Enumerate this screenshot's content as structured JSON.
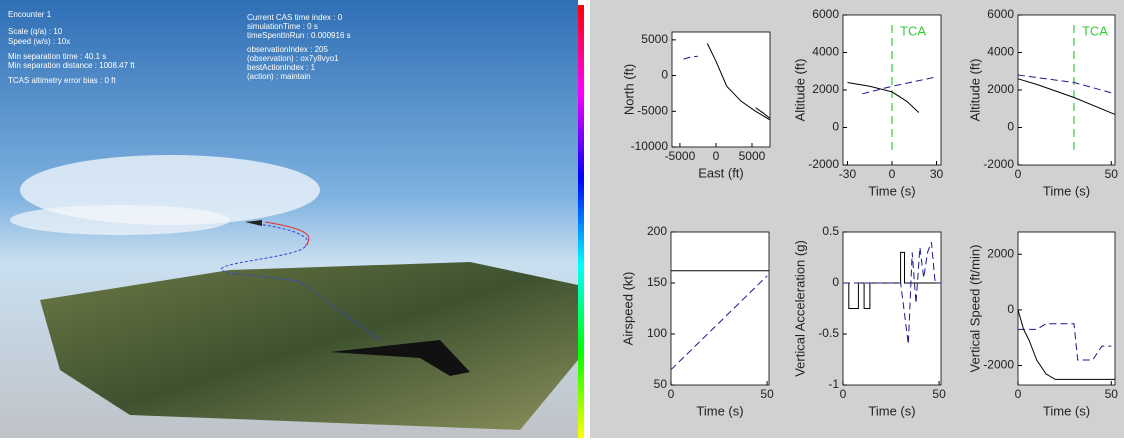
{
  "overlay": {
    "left": [
      "Encounter 1",
      "Scale (q/a) : 10",
      "Speed (w/s) : 10x",
      "Min separation time : 40.1 s",
      "Min separation distance : 1008.47 ft",
      "TCAS altimetry error bias : 0 ft"
    ],
    "right": [
      "Current CAS time index : 0",
      "simulationTime : 0 s",
      "timeSpentInRun : 0.000916 s",
      "observationIndex : 205",
      "(observation) : ox7y8vyo1",
      "bestActionIndex : 1",
      "(action) : maintain"
    ]
  },
  "chart_data": [
    {
      "type": "line",
      "xlabel": "East (ft)",
      "ylabel": "North (ft)",
      "xlim": [
        -6100,
        7500
      ],
      "ylim": [
        -10000,
        6100
      ],
      "xticks": [
        -5000,
        0,
        5000
      ],
      "yticks": [
        -10000,
        -5000,
        0,
        5000
      ],
      "series": [
        {
          "color": "#000000",
          "dash": false,
          "x": [
            -1200,
            0,
            1500,
            3500,
            5500,
            7500
          ],
          "values": [
            4500,
            2000,
            -1500,
            -3600,
            -5000,
            -6200
          ]
        },
        {
          "color": "#1a1a8c",
          "dash": true,
          "x": [
            -4500,
            -3500,
            -2500
          ],
          "values": [
            2300,
            2600,
            2700
          ]
        },
        {
          "color": "#000000",
          "dash": false,
          "x": [
            5500,
            6500,
            7500
          ],
          "values": [
            -4500,
            -5200,
            -6000
          ]
        }
      ]
    },
    {
      "type": "line",
      "xlabel": "Time (s)",
      "ylabel": "Altitude (ft)",
      "xlim": [
        -33,
        33
      ],
      "ylim": [
        -2000,
        6000
      ],
      "xticks": [
        -30,
        0,
        30
      ],
      "yticks": [
        -2000,
        0,
        2000,
        4000,
        6000
      ],
      "vline": {
        "x": 0,
        "label": "TCA",
        "color": "#33cc33"
      },
      "series": [
        {
          "color": "#000000",
          "dash": false,
          "x": [
            -30,
            -15,
            0,
            10,
            18
          ],
          "values": [
            2400,
            2200,
            1900,
            1400,
            800
          ]
        },
        {
          "color": "#1a1a8c",
          "dash": true,
          "x": [
            -20,
            0,
            30
          ],
          "values": [
            1800,
            2200,
            2700
          ]
        }
      ]
    },
    {
      "type": "line",
      "xlabel": "Time (s)",
      "ylabel": "Altitude (ft)",
      "xlim": [
        0,
        52
      ],
      "ylim": [
        -2000,
        6000
      ],
      "xticks": [
        0,
        50
      ],
      "yticks": [
        -2000,
        0,
        2000,
        4000,
        6000
      ],
      "vline": {
        "x": 30,
        "label": "TCA",
        "color": "#33cc33"
      },
      "series": [
        {
          "color": "#000000",
          "dash": false,
          "x": [
            0,
            10,
            30,
            52
          ],
          "values": [
            2600,
            2300,
            1600,
            700
          ]
        },
        {
          "color": "#1a1a8c",
          "dash": true,
          "x": [
            0,
            15,
            30,
            52
          ],
          "values": [
            2800,
            2600,
            2400,
            1800
          ]
        }
      ]
    },
    {
      "type": "line",
      "xlabel": "Time (s)",
      "ylabel": "Airspeed (kt)",
      "xlim": [
        0,
        51
      ],
      "ylim": [
        50,
        200
      ],
      "xticks": [
        0,
        50
      ],
      "yticks": [
        50,
        100,
        150,
        200
      ],
      "series": [
        {
          "color": "#000000",
          "dash": false,
          "x": [
            0,
            51
          ],
          "values": [
            162,
            162
          ]
        },
        {
          "color": "#1a1a8c",
          "dash": true,
          "x": [
            0,
            50
          ],
          "values": [
            65,
            157
          ]
        }
      ]
    },
    {
      "type": "line",
      "xlabel": "Time (s)",
      "ylabel": "Vertical Acceleration (g)",
      "xlim": [
        0,
        51
      ],
      "ylim": [
        -1,
        0.5
      ],
      "xticks": [
        0,
        50
      ],
      "yticks": [
        -1,
        -0.5,
        0,
        0.5
      ],
      "series": [
        {
          "color": "#000000",
          "dash": false,
          "x": [
            0,
            3,
            3,
            8,
            8,
            11,
            11,
            14,
            14,
            30,
            30,
            32,
            32,
            51
          ],
          "values": [
            0,
            0,
            -0.25,
            -0.25,
            0,
            0,
            -0.25,
            -0.25,
            0,
            0,
            0.3,
            0.3,
            0,
            0
          ]
        },
        {
          "color": "#1a1a8c",
          "dash": true,
          "x": [
            0,
            30,
            32,
            34,
            36,
            38,
            40,
            42,
            44,
            46,
            48,
            51
          ],
          "values": [
            0,
            0,
            -0.3,
            -0.6,
            0.3,
            -0.2,
            0.35,
            0.05,
            0.3,
            0.4,
            0,
            0
          ]
        }
      ]
    },
    {
      "type": "line",
      "xlabel": "Time (s)",
      "ylabel": "Vertical Speed (ft/min)",
      "xlim": [
        0,
        52
      ],
      "ylim": [
        -2700,
        2800
      ],
      "xticks": [
        0,
        50
      ],
      "yticks": [
        -2000,
        0,
        2000
      ],
      "series": [
        {
          "color": "#000000",
          "dash": false,
          "x": [
            0,
            3,
            6,
            10,
            15,
            20,
            52
          ],
          "values": [
            0,
            -700,
            -1100,
            -1800,
            -2300,
            -2500,
            -2500
          ]
        },
        {
          "color": "#1a1a8c",
          "dash": true,
          "x": [
            0,
            10,
            15,
            30,
            32,
            40,
            45,
            50
          ],
          "values": [
            -700,
            -700,
            -500,
            -500,
            -1800,
            -1800,
            -1300,
            -1300
          ]
        }
      ]
    }
  ]
}
